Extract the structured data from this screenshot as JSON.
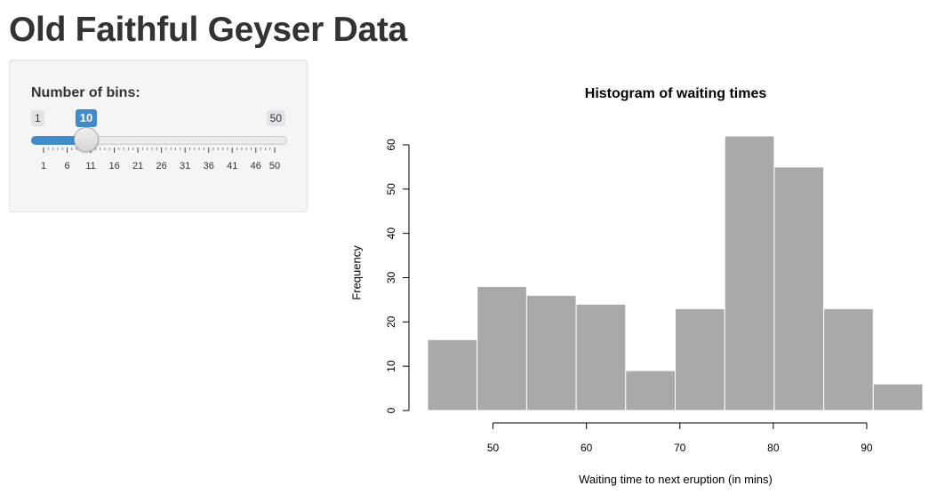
{
  "app": {
    "title": "Old Faithful Geyser Data"
  },
  "sidebar": {
    "slider": {
      "label": "Number of bins:",
      "min": 1,
      "max": 50,
      "value": 10,
      "min_label": "1",
      "max_label": "50",
      "value_label": "10",
      "grid_labels": [
        "1",
        "6",
        "11",
        "16",
        "21",
        "26",
        "31",
        "36",
        "41",
        "46",
        "50"
      ],
      "accent_color": "#428bca"
    }
  },
  "chart_data": {
    "type": "bar",
    "title": "Histogram of waiting times",
    "xlabel": "Waiting time to next eruption (in mins)",
    "ylabel": "Frequency",
    "bins": [
      {
        "start": 43.0,
        "end": 48.3,
        "count": 16
      },
      {
        "start": 48.3,
        "end": 53.6,
        "count": 28
      },
      {
        "start": 53.6,
        "end": 58.9,
        "count": 26
      },
      {
        "start": 58.9,
        "end": 64.2,
        "count": 24
      },
      {
        "start": 64.2,
        "end": 69.5,
        "count": 9
      },
      {
        "start": 69.5,
        "end": 74.8,
        "count": 23
      },
      {
        "start": 74.8,
        "end": 80.1,
        "count": 62
      },
      {
        "start": 80.1,
        "end": 85.4,
        "count": 55
      },
      {
        "start": 85.4,
        "end": 90.7,
        "count": 23
      },
      {
        "start": 90.7,
        "end": 96.0,
        "count": 6
      }
    ],
    "xlim": [
      43,
      96
    ],
    "ylim": [
      0,
      62
    ],
    "xticks": [
      50,
      60,
      70,
      80,
      90
    ],
    "yticks": [
      0,
      10,
      20,
      30,
      40,
      50,
      60
    ],
    "bar_color": "#a9a9a9",
    "border_color": "#ffffff",
    "grid": false
  }
}
